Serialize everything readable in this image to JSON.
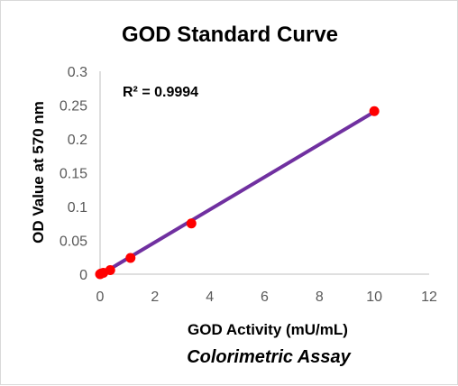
{
  "chart_data": {
    "type": "scatter",
    "title": "GOD Standard Curve",
    "xlabel": "GOD Activity (mU/mL)",
    "subtitle": "Colorimetric Assay",
    "ylabel": "OD Value at 570 nm",
    "annotation": "R² = 0.9994",
    "xlim": [
      0,
      12
    ],
    "ylim": [
      0,
      0.3
    ],
    "x_ticks": [
      "0",
      "2",
      "4",
      "6",
      "8",
      "10",
      "12"
    ],
    "y_ticks": [
      "0",
      "0.05",
      "0.1",
      "0.15",
      "0.2",
      "0.25",
      "0.3"
    ],
    "grid": false,
    "series": [
      {
        "x": [
          0,
          0.04,
          0.12,
          0.37,
          1.11,
          3.33,
          10
        ],
        "y": [
          0,
          0.001,
          0.002,
          0.006,
          0.024,
          0.075,
          0.241
        ],
        "marker_color": "#ff0000",
        "line_color": "#7030a0"
      }
    ],
    "trendline": {
      "x": [
        0,
        10
      ],
      "y": [
        -0.001,
        0.24
      ]
    }
  }
}
